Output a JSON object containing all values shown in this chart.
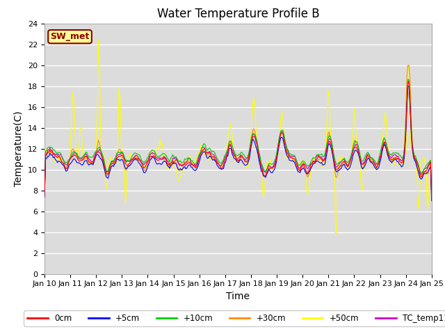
{
  "title": "Water Temperature Profile B",
  "xlabel": "Time",
  "ylabel": "Temperature(C)",
  "ylim": [
    0,
    24
  ],
  "yticks": [
    0,
    2,
    4,
    6,
    8,
    10,
    12,
    14,
    16,
    18,
    20,
    22,
    24
  ],
  "xtick_labels": [
    "Jan 10",
    "Jan 11",
    "Jan 12",
    "Jan 13",
    "Jan 14",
    "Jan 15",
    "Jan 16",
    "Jan 17",
    "Jan 18",
    "Jan 19",
    "Jan 20",
    "Jan 21",
    "Jan 22",
    "Jan 23",
    "Jan 24",
    "Jan 25"
  ],
  "annotation_text": "SW_met",
  "annotation_color": "#8B0000",
  "annotation_bg": "#FFFF99",
  "annotation_border": "#8B0000",
  "colors": {
    "0cm": "#FF0000",
    "+5cm": "#0000FF",
    "+10cm": "#00CC00",
    "+30cm": "#FF8C00",
    "+50cm": "#FFFF00",
    "TC_temp11": "#CC00CC"
  },
  "background_color": "#DCDCDC",
  "grid_color": "#FFFFFF",
  "title_fontsize": 12,
  "axis_fontsize": 10,
  "tick_fontsize": 8
}
